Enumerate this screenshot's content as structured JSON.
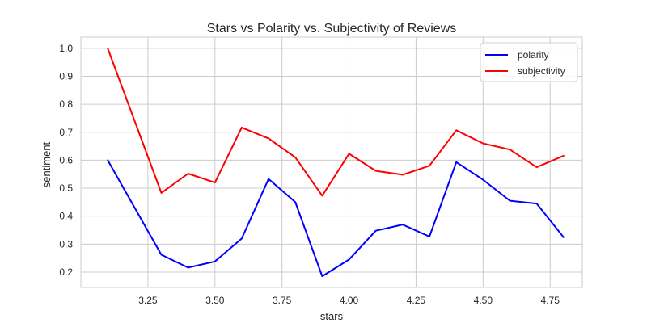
{
  "chart_data": {
    "type": "line",
    "title": "Stars vs Polarity vs. Subjectivity of Reviews",
    "xlabel": "stars",
    "ylabel": "sentiment",
    "xlim": [
      3.0,
      4.87
    ],
    "ylim": [
      0.145,
      1.04
    ],
    "grid": true,
    "legend_position": "top-right",
    "x_ticks": [
      3.25,
      3.5,
      3.75,
      4.0,
      4.25,
      4.5,
      4.75
    ],
    "x_tick_labels": [
      "3.25",
      "3.50",
      "3.75",
      "4.00",
      "4.25",
      "4.50",
      "4.75"
    ],
    "y_ticks": [
      0.2,
      0.3,
      0.4,
      0.5,
      0.6,
      0.7,
      0.8,
      0.9,
      1.0
    ],
    "y_tick_labels": [
      "0.2",
      "0.3",
      "0.4",
      "0.5",
      "0.6",
      "0.7",
      "0.8",
      "0.9",
      "1.0"
    ],
    "x": [
      3.1,
      3.3,
      3.4,
      3.5,
      3.6,
      3.7,
      3.8,
      3.9,
      4.0,
      4.1,
      4.2,
      4.3,
      4.4,
      4.5,
      4.6,
      4.7,
      4.8
    ],
    "series": [
      {
        "name": "polarity",
        "color": "#0000ff",
        "values": [
          0.6,
          0.262,
          0.216,
          0.238,
          0.32,
          0.533,
          0.45,
          0.185,
          0.245,
          0.348,
          0.37,
          0.327,
          0.593,
          0.53,
          0.455,
          0.445,
          0.325
        ]
      },
      {
        "name": "subjectivity",
        "color": "#ff0000",
        "values": [
          1.0,
          0.483,
          0.552,
          0.52,
          0.717,
          0.678,
          0.61,
          0.473,
          0.623,
          0.562,
          0.548,
          0.58,
          0.707,
          0.66,
          0.638,
          0.575,
          0.616
        ]
      }
    ]
  }
}
